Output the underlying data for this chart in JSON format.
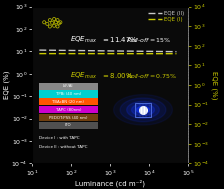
{
  "background_color": "#000000",
  "plot_bg_color": "#0a0a0a",
  "xlim": [
    10.0,
    100000.0
  ],
  "ylim_left": [
    0.0001,
    1000.0
  ],
  "xlabel": "Luminance (cd m⁻²)",
  "ylabel_left": "EQE (%)",
  "ylabel_right": "EQE (%)",
  "curve_II_color": "#c8c8c8",
  "curve_I_color": "#cccc00",
  "legend_II_label": "EQE (II)",
  "legend_I_label": "EQE (I)",
  "device_layers": [
    {
      "label": "LiF/Al",
      "color": "#888888"
    },
    {
      "label": "TPBi (40 nm)",
      "color": "#00d0d0"
    },
    {
      "label": "TBAcBN (20 nm)",
      "color": "#ff5500"
    },
    {
      "label": "TAPC (80nm)",
      "color": "#cc00cc"
    },
    {
      "label": "PEDOT:PSS (40 nm)",
      "color": "#704010"
    },
    {
      "label": "ITO",
      "color": "#505050"
    }
  ],
  "device_legend1": "Device I : with TAPC",
  "device_legend2": "Device II : without TAPC",
  "mol_x": [
    20,
    28,
    36,
    44,
    52,
    24,
    32,
    40,
    48,
    28,
    36,
    44
  ],
  "mol_y": [
    200,
    250,
    280,
    250,
    200,
    170,
    190,
    200,
    180,
    130,
    140,
    130
  ]
}
